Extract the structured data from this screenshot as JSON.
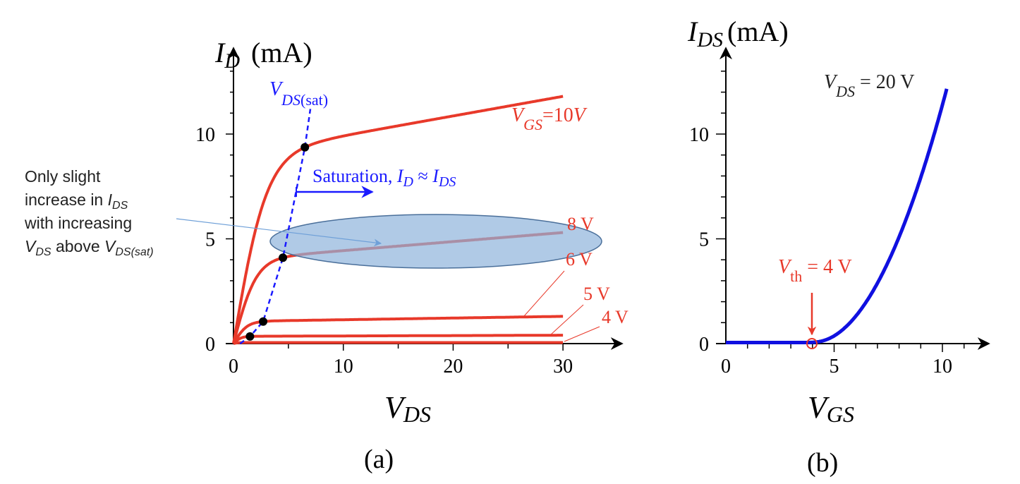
{
  "chart_data": [
    {
      "type": "line",
      "panel_label": "(a)",
      "ylabel": {
        "main": "I",
        "sub": "D",
        "unit": "(mA)"
      },
      "xlabel": {
        "main": "V",
        "sub": "DS"
      },
      "xlim": [
        0,
        35
      ],
      "ylim": [
        0,
        13.5
      ],
      "xticks": [
        0,
        10,
        20,
        30
      ],
      "yticks": [
        0,
        5,
        10
      ],
      "x_tick_labels": [
        "0",
        "10",
        "20",
        "30"
      ],
      "y_tick_labels": [
        "0",
        "5",
        "10"
      ],
      "series": [
        {
          "name": "VGS=10V",
          "label": "=10",
          "vgs": 10,
          "vds_sat": 6.5,
          "id_sat": 9.6,
          "id_at_30": 11.8,
          "color": "#e8392a"
        },
        {
          "name": "VGS=8V",
          "label": "8 V",
          "vgs": 8,
          "vds_sat": 4.5,
          "id_sat": 4.2,
          "id_at_30": 5.3,
          "color": "#e8392a"
        },
        {
          "name": "VGS=6V",
          "label": "6 V",
          "vgs": 6,
          "vds_sat": 2.7,
          "id_sat": 1.08,
          "id_at_30": 1.3,
          "color": "#e8392a"
        },
        {
          "name": "VGS=5V",
          "label": "5 V",
          "vgs": 5,
          "vds_sat": 1.5,
          "id_sat": 0.35,
          "id_at_30": 0.4,
          "color": "#e8392a"
        },
        {
          "name": "VGS=4V",
          "label": "4 V",
          "vgs": 4,
          "vds_sat": 0.8,
          "id_sat": 0.05,
          "id_at_30": 0.05,
          "color": "#e8392a"
        }
      ],
      "vgs_label": {
        "main": "V",
        "sub": "GS",
        "unit": "V"
      },
      "vds_sat_curve": {
        "label_main": "V",
        "label_sub": "DS",
        "label_sub2": "(sat)",
        "color": "#1a1aff"
      },
      "saturation_annotation": {
        "text": "Saturation, ",
        "i1": "I",
        "s1": "D",
        "approx": " ≈ ",
        "i2": "I",
        "s2": "DS"
      },
      "callout": {
        "lines": [
          "Only slight",
          "increase in ",
          "with increasing",
          " above "
        ],
        "ids_main": "I",
        "ids_sub": "DS",
        "vds_main": "V",
        "vds_sub": "DS",
        "vdssat_main": "V",
        "vdssat_sub": "DS(sat)"
      }
    },
    {
      "type": "line",
      "panel_label": "(b)",
      "ylabel": {
        "main": "I",
        "sub": "DS",
        "unit": "(mA)"
      },
      "xlabel": {
        "main": "V",
        "sub": "GS"
      },
      "xlim": [
        0,
        12
      ],
      "ylim": [
        0,
        13.5
      ],
      "x_tick_labels": [
        "0",
        "5",
        "10"
      ],
      "y_tick_labels": [
        "0",
        "5",
        "10"
      ],
      "vth": 4,
      "k": 0.3,
      "vgs_max": 10.2,
      "color": "#1010e0",
      "condition": {
        "main": "V",
        "sub": "DS",
        "rest": " = 20 V"
      },
      "vth_label": {
        "main": "V",
        "sub": "th",
        "rest": " = 4 V"
      }
    }
  ]
}
